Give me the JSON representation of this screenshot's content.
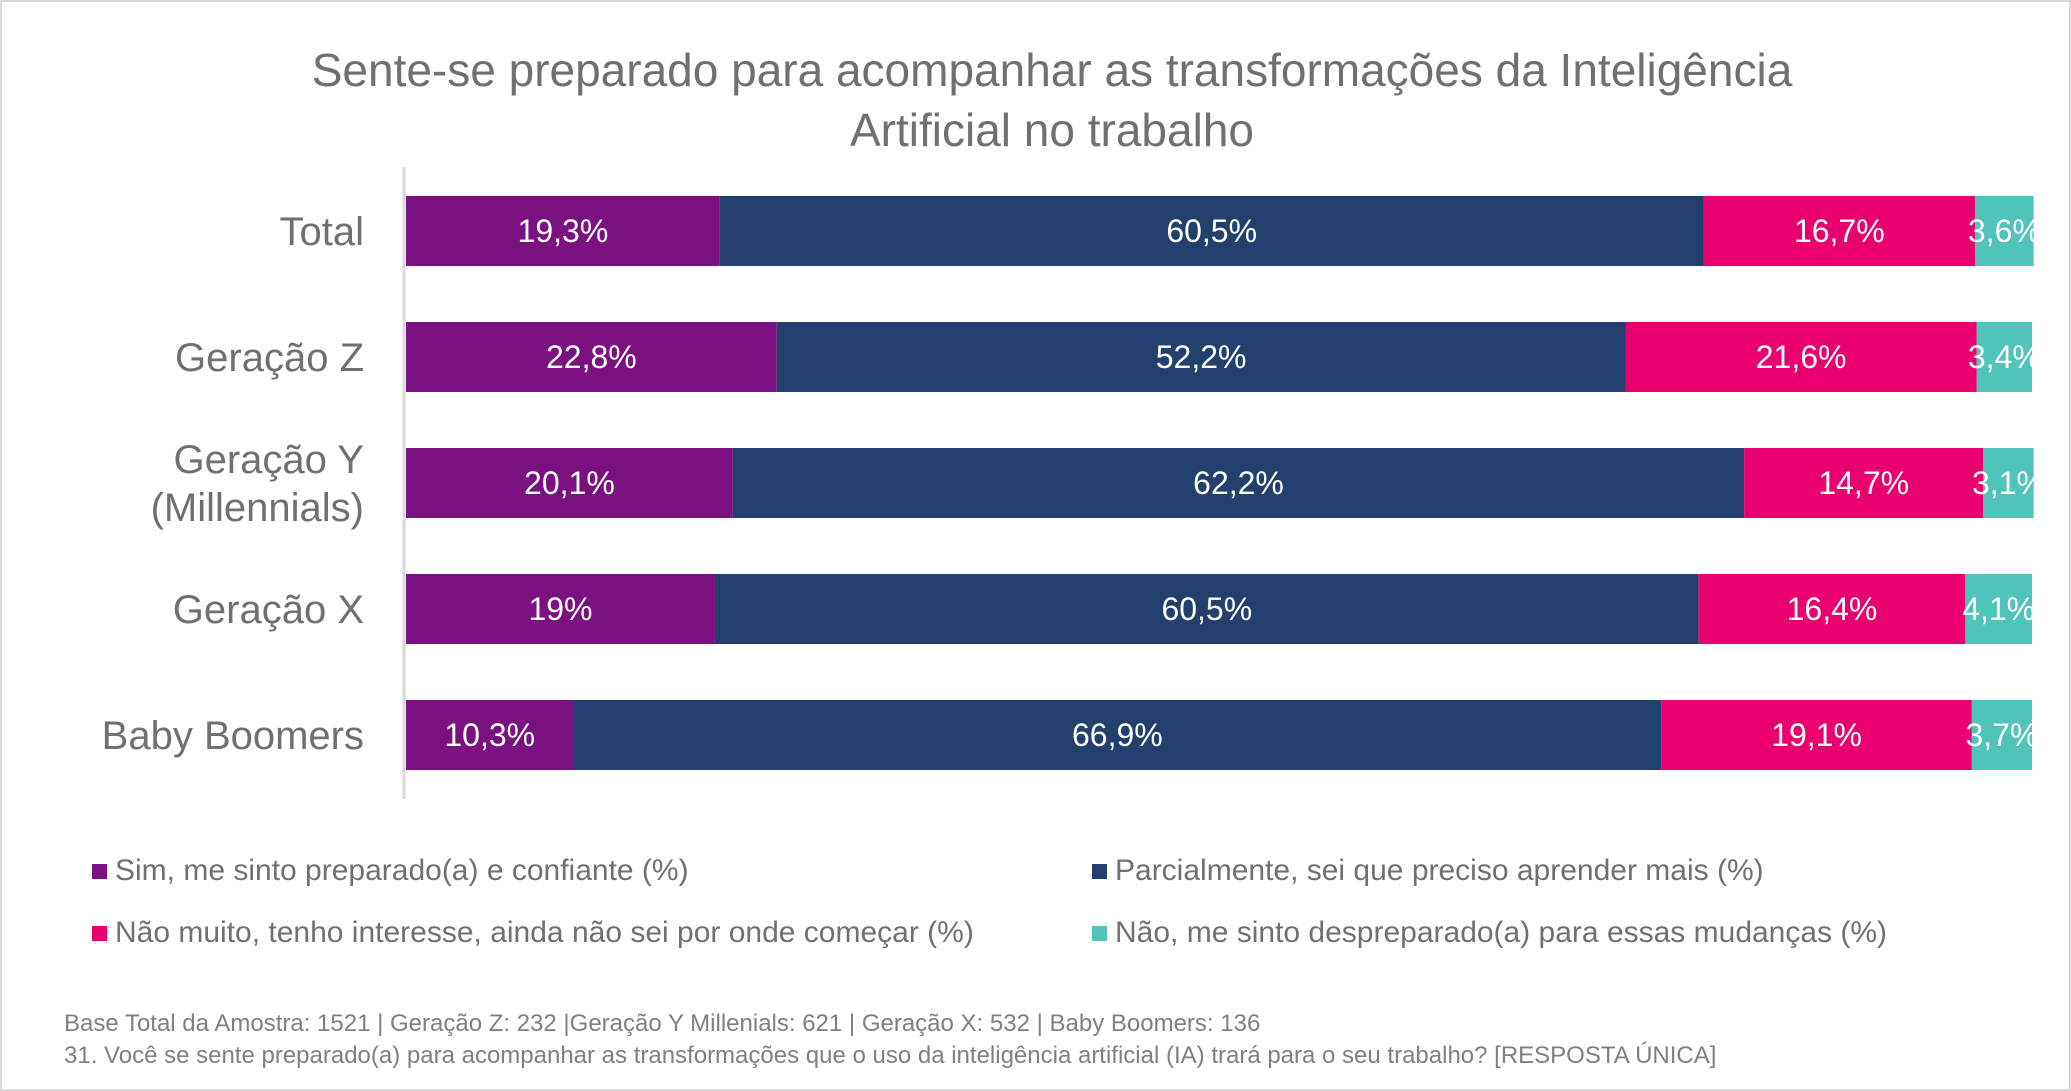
{
  "chart_data": {
    "type": "bar",
    "orientation": "horizontal",
    "stacked": true,
    "title_line1": "Sente-se preparado para acompanhar as transformações da Inteligência",
    "title_line2": "Artificial no trabalho",
    "categories": [
      "Total",
      "Geração Z",
      "Geração Y (Millennials)",
      "Geração X",
      "Baby Boomers"
    ],
    "category_lines": [
      [
        "Total"
      ],
      [
        "Geração Z"
      ],
      [
        "Geração Y",
        "(Millennials)"
      ],
      [
        "Geração X"
      ],
      [
        "Baby Boomers"
      ]
    ],
    "xlim": [
      0,
      100
    ],
    "series": [
      {
        "name": "Sim, me sinto preparado(a) e confiante (%)",
        "color": "#7b1180",
        "values": [
          19.3,
          22.8,
          20.1,
          19,
          10.3
        ],
        "labels": [
          "19,3%",
          "22,8%",
          "20,1%",
          "19%",
          "10,3%"
        ]
      },
      {
        "name": "Parcialmente, sei que preciso aprender mais (%)",
        "color": "#223f6e",
        "values": [
          60.5,
          52.2,
          62.2,
          60.5,
          66.9
        ],
        "labels": [
          "60,5%",
          "52,2%",
          "62,2%",
          "60,5%",
          "66,9%"
        ]
      },
      {
        "name": "Não muito, tenho interesse, ainda não sei por onde começar (%)",
        "color": "#e9006e",
        "values": [
          16.7,
          21.6,
          14.7,
          16.4,
          19.1
        ],
        "labels": [
          "16,7%",
          "21,6%",
          "14,7%",
          "16,4%",
          "19,1%"
        ]
      },
      {
        "name": "Não, me sinto despreparado(a) para essas mudanças (%)",
        "color": "#50c4b8",
        "values": [
          3.6,
          3.4,
          3.1,
          4.1,
          3.7
        ],
        "labels": [
          "3,6%",
          "3,4%",
          "3,1%",
          "4,1%",
          "3,7%"
        ]
      }
    ]
  },
  "footnote": {
    "line1": "Base Total da Amostra: 1521 | Geração Z: 232 |Geração Y Millenials: 621 | Geração X: 532 | Baby Boomers: 136",
    "line2": "31. Você se sente preparado(a) para acompanhar as transformações que o uso da inteligência artificial (IA) trará para o seu trabalho? [RESPOSTA ÚNICA]"
  }
}
